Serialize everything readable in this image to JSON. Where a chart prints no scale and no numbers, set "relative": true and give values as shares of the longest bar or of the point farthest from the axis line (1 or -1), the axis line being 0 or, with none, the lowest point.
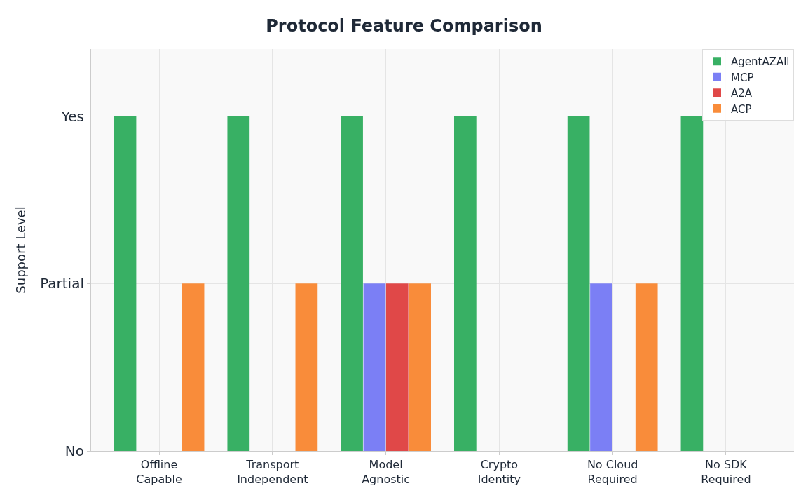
{
  "chart_data": {
    "type": "bar",
    "title": "Protocol Feature Comparison",
    "ylabel": "Support Level",
    "categories": [
      "Offline\nCapable",
      "Transport\nIndependent",
      "Model\nAgnostic",
      "Crypto\nIdentity",
      "No Cloud\nRequired",
      "No SDK\nRequired"
    ],
    "series": [
      {
        "name": "AgentAZAll",
        "color": "#38b064",
        "values": [
          1,
          1,
          1,
          1,
          1,
          1
        ]
      },
      {
        "name": "MCP",
        "color": "#7b7ff5",
        "values": [
          0,
          0,
          0.5,
          0,
          0.5,
          0
        ]
      },
      {
        "name": "A2A",
        "color": "#e04848",
        "values": [
          0,
          0,
          0.5,
          0,
          0,
          0
        ]
      },
      {
        "name": "ACP",
        "color": "#f98c3a",
        "values": [
          0.5,
          0.5,
          0.5,
          0,
          0.5,
          0
        ]
      }
    ],
    "relative": true,
    "annotations": [
      "No",
      "Partial",
      "Yes"
    ],
    "grid": true,
    "legend": "top right"
  }
}
